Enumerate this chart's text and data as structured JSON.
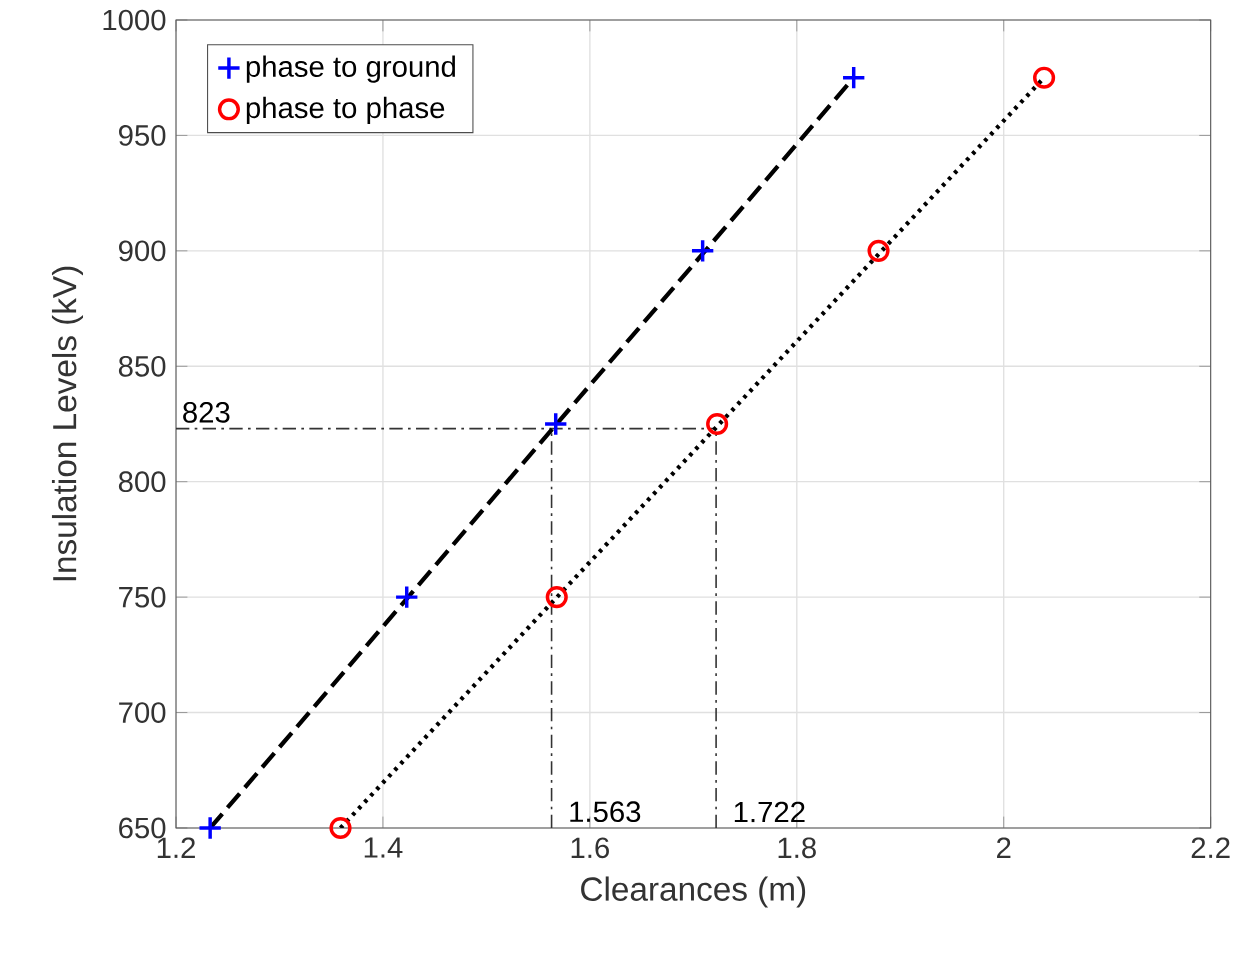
{
  "chart_data": {
    "type": "scatter",
    "xlabel": "Clearances (m)",
    "ylabel": "Insulation Levels (kV)",
    "xlim": [
      1.2,
      2.2
    ],
    "ylim": [
      650,
      1000
    ],
    "xticks": [
      1.2,
      1.4,
      1.6,
      1.8,
      2,
      2.2
    ],
    "yticks": [
      650,
      700,
      750,
      800,
      850,
      900,
      950,
      1000
    ],
    "grid": true,
    "legend": "top left",
    "series": [
      {
        "name": "phase to ground",
        "color": "#0000ff",
        "marker": "cross",
        "x": [
          1.233,
          1.423,
          1.567,
          1.709,
          1.855
        ],
        "values": [
          650,
          750,
          825,
          900,
          975
        ]
      },
      {
        "name": "phase to phase",
        "color": "#ff0000",
        "marker": "circle",
        "x": [
          1.359,
          1.568,
          1.723,
          1.879,
          2.039
        ],
        "values": [
          650,
          750,
          825,
          900,
          975
        ]
      },
      {
        "type": "line",
        "color": "#000000",
        "line_style": "dashed",
        "x": [
          1.233,
          1.855
        ],
        "values": [
          650,
          975
        ]
      },
      {
        "type": "line",
        "color": "#000000",
        "line_style": "dotted",
        "x": [
          1.359,
          2.039
        ],
        "values": [
          650,
          975
        ]
      }
    ],
    "ref_lines": [
      {
        "axis": "y",
        "value": 823,
        "label": "823"
      },
      {
        "axis": "x",
        "value": 1.563,
        "label": "1.563"
      },
      {
        "axis": "x",
        "value": 1.722,
        "label": "1.722"
      }
    ]
  }
}
